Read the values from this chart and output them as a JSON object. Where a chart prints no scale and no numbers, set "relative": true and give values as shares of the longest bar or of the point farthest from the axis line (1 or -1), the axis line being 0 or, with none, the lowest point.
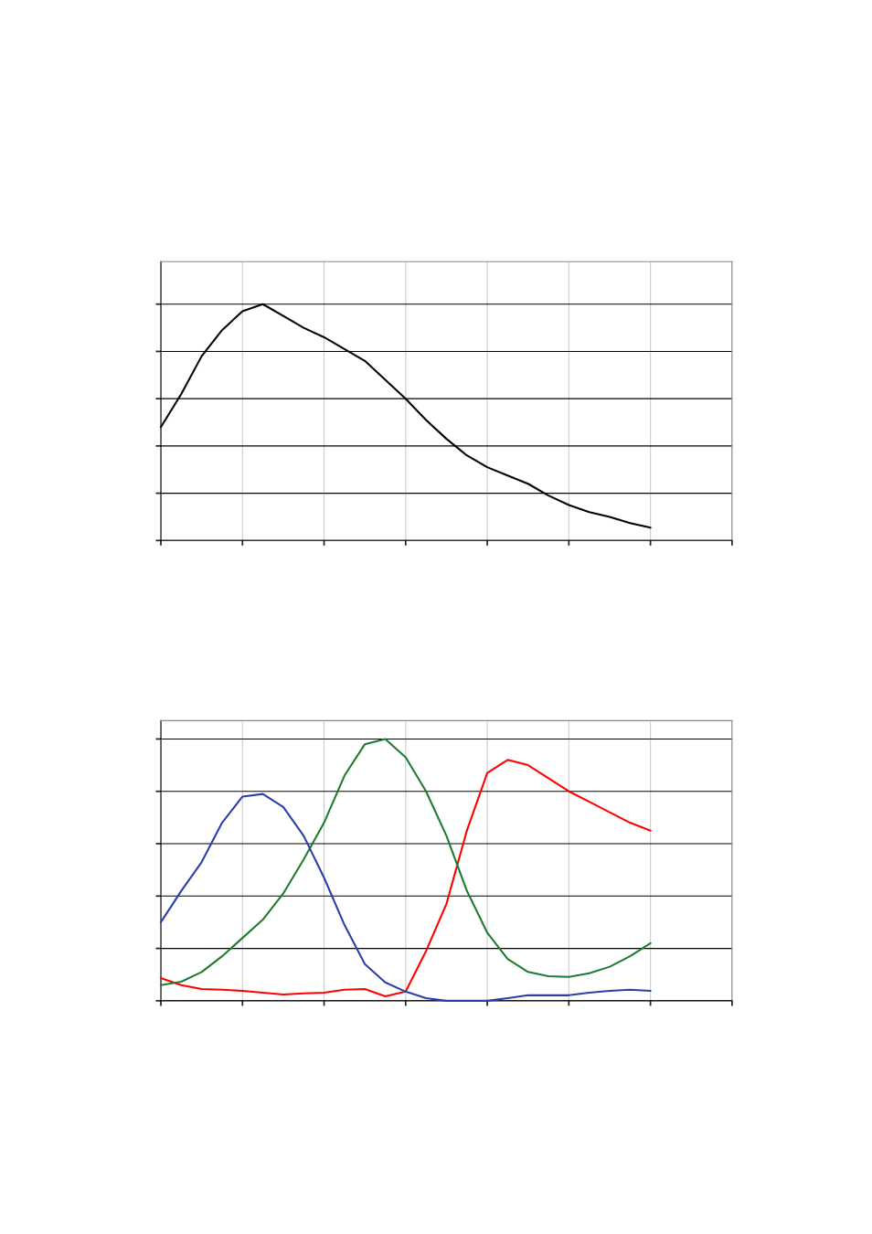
{
  "chart_data": [
    {
      "type": "line",
      "relative": true,
      "grid": true,
      "categories": [
        null,
        null,
        null,
        null,
        null,
        null,
        null,
        null,
        null,
        null,
        null,
        null,
        null,
        null,
        null,
        null,
        null,
        null,
        null,
        null,
        null,
        null,
        null,
        null,
        null,
        null,
        null,
        null,
        null
      ],
      "series": [
        {
          "color": "#000000",
          "values": [
            0.48,
            0.62,
            0.78,
            0.89,
            0.97,
            1,
            0.95,
            0.9,
            0.86,
            0.81,
            0.76,
            0.68,
            0.6,
            0.51,
            0.43,
            0.36,
            0.31,
            0.275,
            0.24,
            0.19,
            0.15,
            0.12,
            0.1,
            0.074,
            0.054,
            null,
            null,
            null,
            null
          ]
        }
      ]
    },
    {
      "type": "line",
      "relative": true,
      "grid": true,
      "categories": [
        null,
        null,
        null,
        null,
        null,
        null,
        null,
        null,
        null,
        null,
        null,
        null,
        null,
        null,
        null,
        null,
        null,
        null,
        null,
        null,
        null,
        null,
        null,
        null,
        null,
        null,
        null,
        null,
        null
      ],
      "series": [
        {
          "color": "#ff0000",
          "values": [
            0.087,
            0.06,
            0.045,
            0.042,
            0.038,
            0.031,
            0.024,
            0.028,
            0.031,
            0.042,
            0.045,
            0.017,
            0.035,
            0.19,
            0.37,
            0.65,
            0.87,
            0.92,
            0.9,
            0.85,
            0.8,
            0.76,
            0.72,
            0.68,
            0.65,
            null,
            null,
            null,
            null
          ]
        },
        {
          "color": "#1e7b30",
          "values": [
            0.06,
            0.073,
            0.11,
            0.17,
            0.24,
            0.31,
            0.41,
            0.54,
            0.68,
            0.86,
            0.98,
            1,
            0.93,
            0.8,
            0.63,
            0.42,
            0.26,
            0.16,
            0.11,
            0.094,
            0.091,
            0.105,
            0.13,
            0.17,
            0.22,
            null,
            null,
            null,
            null
          ]
        },
        {
          "color": "#2b3fa8",
          "values": [
            0.3,
            0.42,
            0.53,
            0.68,
            0.78,
            0.79,
            0.74,
            0.63,
            0.47,
            0.29,
            0.14,
            0.07,
            0.035,
            0.01,
            0,
            0,
            0,
            0.01,
            0.021,
            0.021,
            0.021,
            0.031,
            0.038,
            0.042,
            0.038,
            null,
            null,
            null,
            null
          ]
        }
      ]
    }
  ]
}
